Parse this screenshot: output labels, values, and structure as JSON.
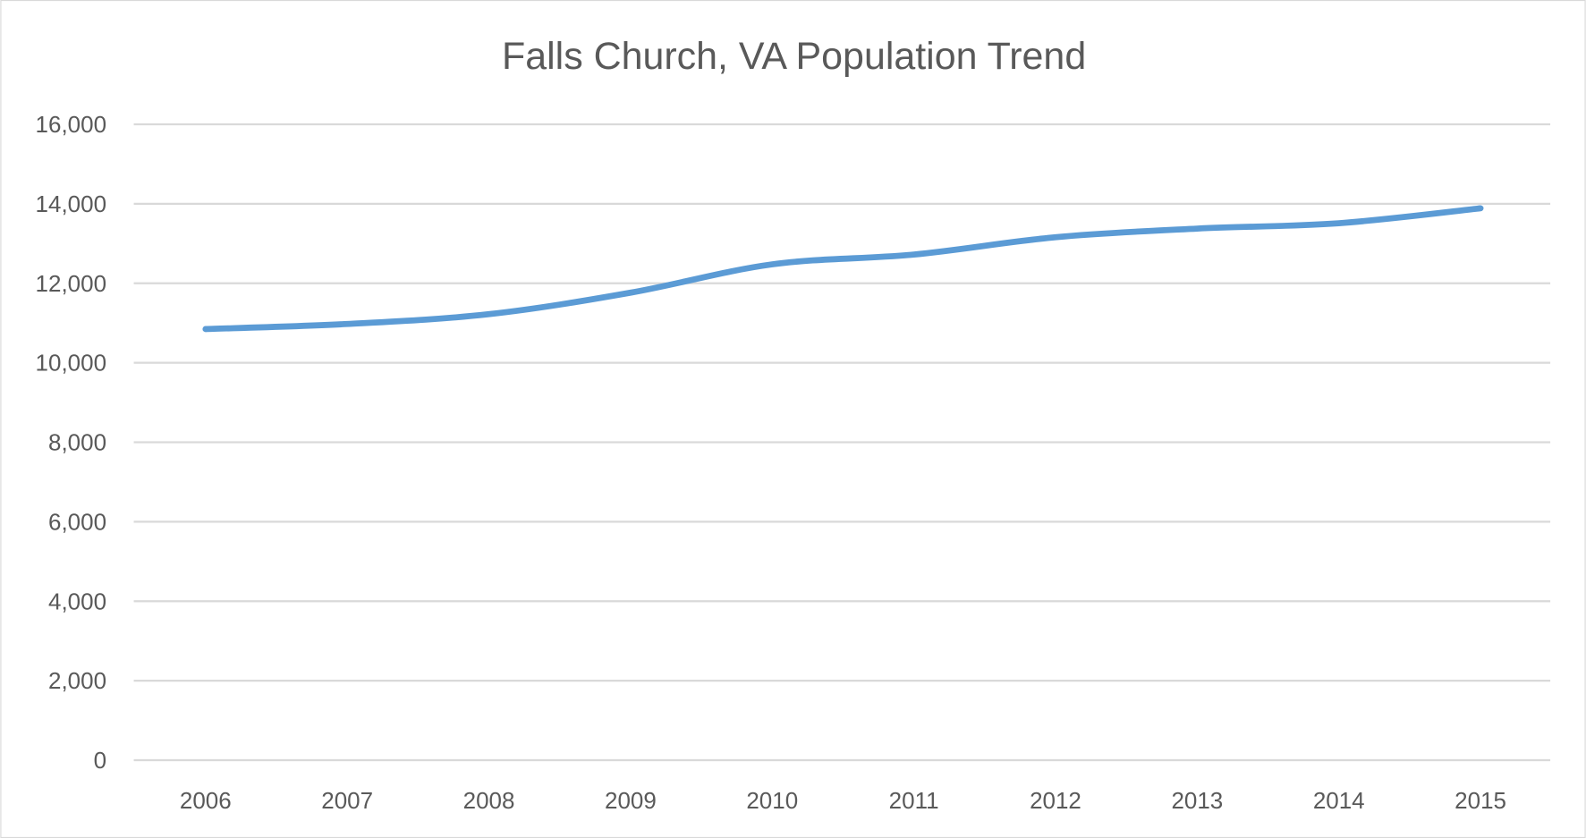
{
  "chart_data": {
    "type": "line",
    "title": "Falls Church, VA Population Trend",
    "xlabel": "",
    "ylabel": "",
    "categories": [
      "2006",
      "2007",
      "2008",
      "2009",
      "2010",
      "2011",
      "2012",
      "2013",
      "2014",
      "2015"
    ],
    "series": [
      {
        "values": [
          10848,
          10976,
          11223,
          11764,
          12477,
          12724,
          13160,
          13377,
          13512,
          13887
        ],
        "color": "#5b9bd5"
      }
    ],
    "ylim": [
      0,
      16000
    ],
    "yticks": [
      "0",
      "2,000",
      "4,000",
      "6,000",
      "8,000",
      "10,000",
      "12,000",
      "14,000",
      "16,000"
    ],
    "ytick_values": [
      0,
      2000,
      4000,
      6000,
      8000,
      10000,
      12000,
      14000,
      16000
    ],
    "grid": true,
    "legend": "none",
    "colors": {
      "grid": "#d9d9d9",
      "text": "#595959",
      "border": "#d9d9d9"
    }
  }
}
